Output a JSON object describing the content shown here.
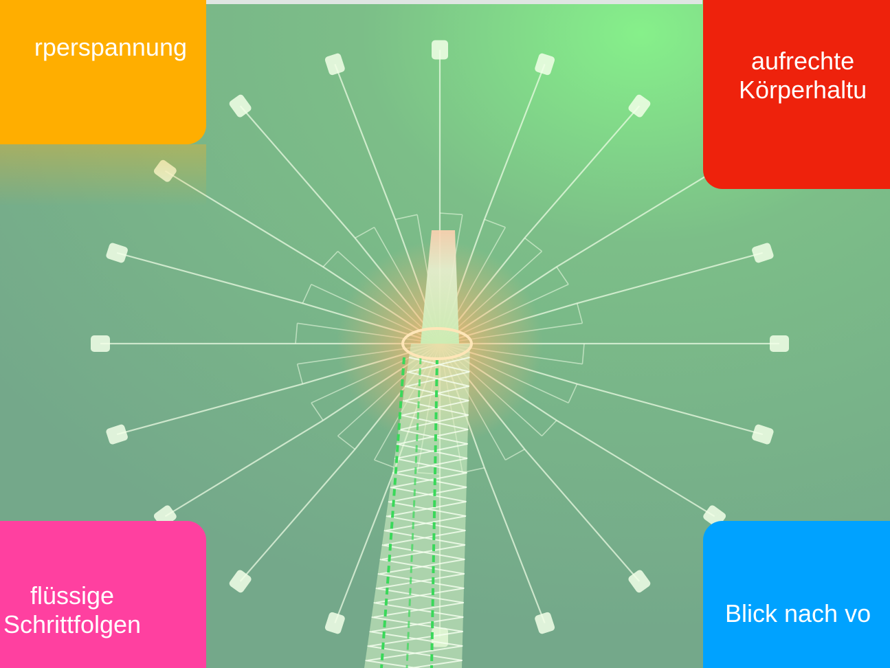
{
  "colors": {
    "sky": "#78b08a",
    "card_orange": "#ffae00",
    "card_red": "#ee220c",
    "card_pink": "#ff40a0",
    "card_blue": "#00a2ff",
    "glow": "#f2ffe8",
    "light_warm": "#ffb870"
  },
  "cards": {
    "top_left": {
      "text": "rperspannung"
    },
    "top_right": {
      "text": "aufrechte\nKörperhaltu"
    },
    "bottom_left": {
      "text": "flüssige\nSchrittfolgen"
    },
    "bottom_right": {
      "text": "Blick nach vo"
    }
  },
  "photo": {
    "subject_icon": "swing-carousel-photo"
  }
}
